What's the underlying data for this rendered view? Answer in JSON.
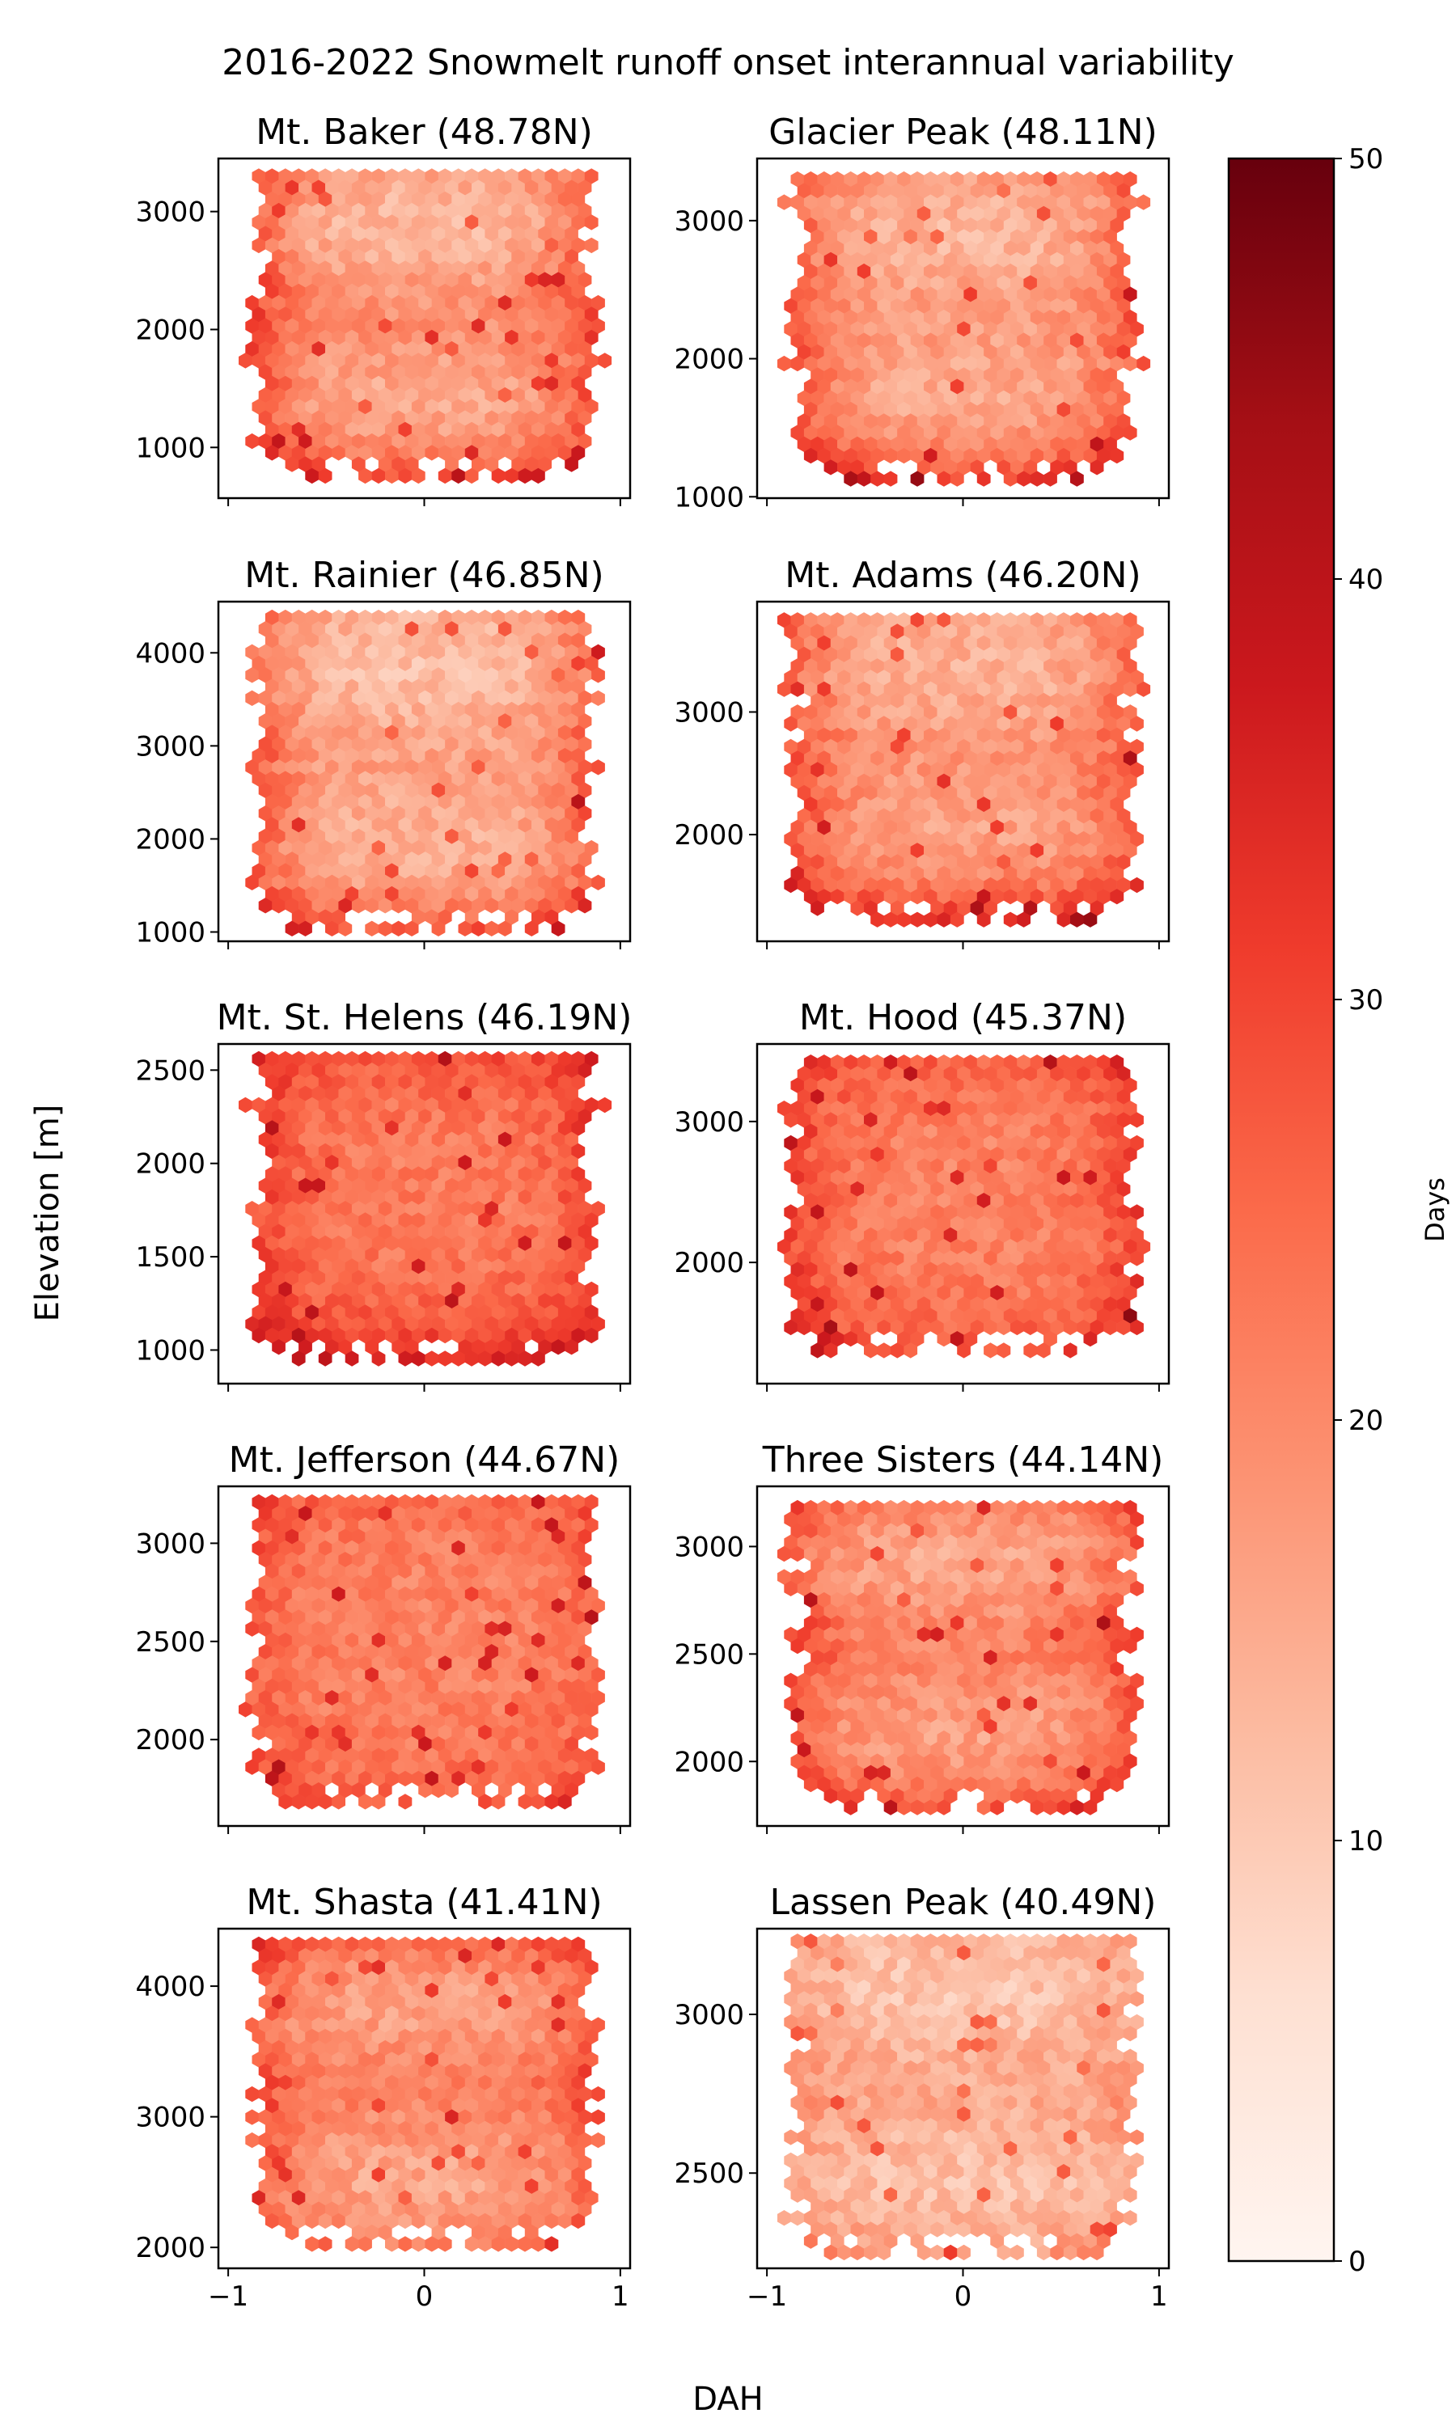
{
  "chart_data": {
    "type": "heatmap",
    "subtype": "hexbin",
    "title": "2016-2022 Snowmelt runoff onset interannual variability",
    "xlabel": "DAH",
    "ylabel": "Elevation [m]",
    "xlim": [
      -1.05,
      1.05
    ],
    "x_ticks": [
      -1,
      0,
      1
    ],
    "x_tick_labels": [
      "−1",
      "0",
      "1"
    ],
    "colorbar": {
      "label": "Days",
      "colormap": "Reds",
      "range": [
        0,
        50
      ],
      "ticks": [
        0,
        10,
        20,
        30,
        40,
        50
      ],
      "tick_labels": [
        "0",
        "10",
        "20",
        "30",
        "40",
        "50"
      ]
    },
    "color_stops": [
      "#fff5f0",
      "#fee0d2",
      "#fcbba1",
      "#fc9272",
      "#fb6a4a",
      "#ef3b2c",
      "#cb181d",
      "#a50f15",
      "#67000d"
    ],
    "panels": [
      {
        "name": "Mt. Baker (48.78N)",
        "ylim": [
          570,
          3450
        ],
        "elev_range": [
          720,
          3300
        ],
        "yticks": [
          1000,
          2000,
          3000
        ],
        "ytick_labels": [
          "1000",
          "2000",
          "3000"
        ],
        "pattern": {
          "base": 16,
          "edge": 13,
          "bottom_extra": 12,
          "top_extra": 0,
          "band": -3
        }
      },
      {
        "name": "Glacier Peak (48.11N)",
        "ylim": [
          990,
          3450
        ],
        "elev_range": [
          1120,
          3300
        ],
        "yticks": [
          1000,
          2000,
          3000
        ],
        "ytick_labels": [
          "1000",
          "2000",
          "3000"
        ],
        "pattern": {
          "base": 15,
          "edge": 12,
          "bottom_extra": 14,
          "top_extra": 2,
          "band": -2
        }
      },
      {
        "name": "Mt. Rainier (46.85N)",
        "ylim": [
          900,
          4550
        ],
        "elev_range": [
          1030,
          4380
        ],
        "yticks": [
          1000,
          2000,
          3000,
          4000
        ],
        "ytick_labels": [
          "1000",
          "2000",
          "3000",
          "4000"
        ],
        "pattern": {
          "base": 14,
          "edge": 13,
          "bottom_extra": 12,
          "top_extra": 0,
          "band": -2
        }
      },
      {
        "name": "Mt. Adams (46.20N)",
        "ylim": [
          1130,
          3900
        ],
        "elev_range": [
          1300,
          3750
        ],
        "yticks": [
          2000,
          3000
        ],
        "ytick_labels": [
          "2000",
          "3000"
        ],
        "pattern": {
          "base": 16,
          "edge": 12,
          "bottom_extra": 16,
          "top_extra": 0,
          "band": -2
        }
      },
      {
        "name": "Mt. St. Helens (46.19N)",
        "ylim": [
          820,
          2640
        ],
        "elev_range": [
          920,
          2560
        ],
        "yticks": [
          1000,
          1500,
          2000,
          2500
        ],
        "ytick_labels": [
          "1000",
          "1500",
          "2000",
          "2500"
        ],
        "pattern": {
          "base": 22,
          "edge": 8,
          "bottom_extra": 14,
          "top_extra": 6,
          "band": 0
        }
      },
      {
        "name": "Mt. Hood (45.37N)",
        "ylim": [
          1140,
          3550
        ],
        "elev_range": [
          1310,
          3420
        ],
        "yticks": [
          2000,
          3000
        ],
        "ytick_labels": [
          "2000",
          "3000"
        ],
        "pattern": {
          "base": 21,
          "edge": 10,
          "bottom_extra": 8,
          "top_extra": 5,
          "band": 0
        }
      },
      {
        "name": "Mt. Jefferson (44.67N)",
        "ylim": [
          1560,
          3290
        ],
        "elev_range": [
          1660,
          3210
        ],
        "yticks": [
          2000,
          2500,
          3000
        ],
        "ytick_labels": [
          "2000",
          "2500",
          "3000"
        ],
        "pattern": {
          "base": 21,
          "edge": 6,
          "bottom_extra": 6,
          "top_extra": 4,
          "band": 0
        }
      },
      {
        "name": "Three Sisters (44.14N)",
        "ylim": [
          1700,
          3280
        ],
        "elev_range": [
          1780,
          3180
        ],
        "yticks": [
          2000,
          2500,
          3000
        ],
        "ytick_labels": [
          "2000",
          "2500",
          "3000"
        ],
        "pattern": {
          "base": 18,
          "edge": 11,
          "bottom_extra": 8,
          "top_extra": 3,
          "band": -3
        }
      },
      {
        "name": "Mt. Shasta (41.41N)",
        "ylim": [
          1840,
          4440
        ],
        "elev_range": [
          1960,
          4320
        ],
        "yticks": [
          2000,
          3000,
          4000
        ],
        "ytick_labels": [
          "2000",
          "3000",
          "4000"
        ],
        "pattern": {
          "base": 18,
          "edge": 10,
          "bottom_extra": 3,
          "top_extra": 7,
          "band": -3
        }
      },
      {
        "name": "Lassen Peak (40.49N)",
        "ylim": [
          2200,
          3270
        ],
        "elev_range": [
          2240,
          3230
        ],
        "yticks": [
          2500,
          3000
        ],
        "ytick_labels": [
          "2500",
          "3000"
        ],
        "pattern": {
          "base": 13,
          "edge": 5,
          "bottom_extra": 3,
          "top_extra": 0,
          "band": -2
        }
      }
    ]
  }
}
